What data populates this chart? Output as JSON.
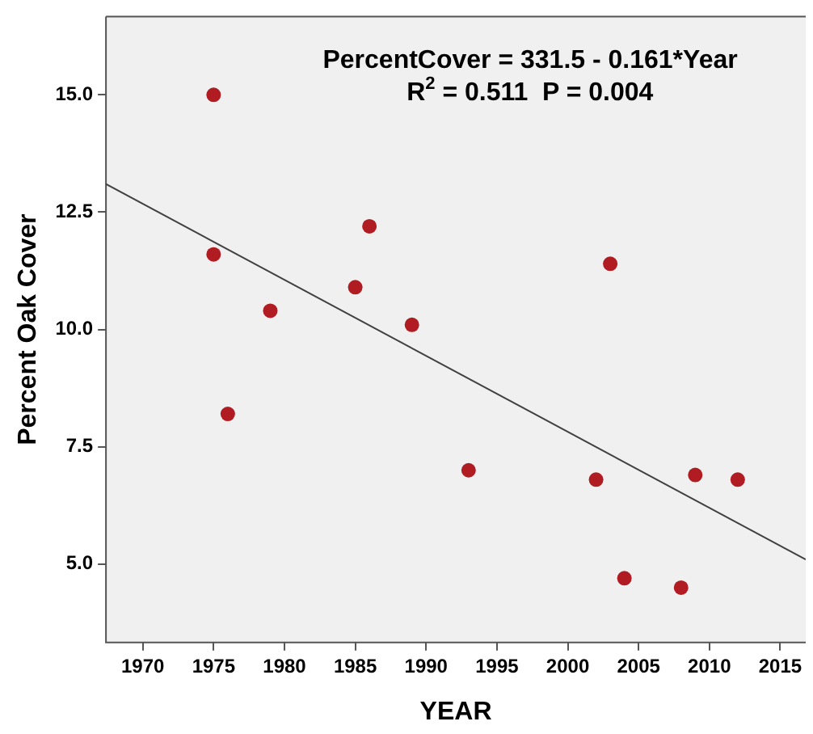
{
  "chart_data": {
    "type": "scatter",
    "xlabel": "YEAR",
    "ylabel": "Percent Oak Cover",
    "annotations": [
      "PercentCover = 331.5 - 0.161*Year",
      "R$^{2}$ = 0.511  P = 0.004"
    ],
    "xlim": [
      1967.4,
      2016.8
    ],
    "xticks": [
      1970,
      1975,
      1980,
      1985,
      1990,
      1995,
      2000,
      2005,
      2010,
      2015
    ],
    "ylim": [
      3.33,
      16.67
    ],
    "yticks": [
      {
        "value": 5,
        "label": "5.0"
      },
      {
        "value": 7.5,
        "label": "7.5"
      },
      {
        "value": 10,
        "label": "10.0"
      },
      {
        "value": 12.5,
        "label": "12.5"
      },
      {
        "value": 15,
        "label": "15.0"
      }
    ],
    "grid": false,
    "legend": false,
    "marker": "circle",
    "series": [
      {
        "type": "scatter",
        "color": "#b01c22",
        "x": [
          1975,
          1975,
          1976,
          1979,
          1985,
          1986,
          1989,
          1993,
          2002,
          2003,
          2004,
          2008,
          2009,
          2012
        ],
        "values": [
          15.0,
          11.6,
          8.2,
          10.4,
          10.9,
          12.2,
          10.1,
          7.0,
          6.8,
          11.4,
          4.7,
          4.5,
          6.9,
          6.8
        ]
      },
      {
        "type": "line",
        "color": "#404040",
        "line_style": "solid",
        "marker": "none",
        "x": [
          1967.4,
          2016.8
        ],
        "values": [
          13.1,
          5.1
        ]
      }
    ]
  }
}
